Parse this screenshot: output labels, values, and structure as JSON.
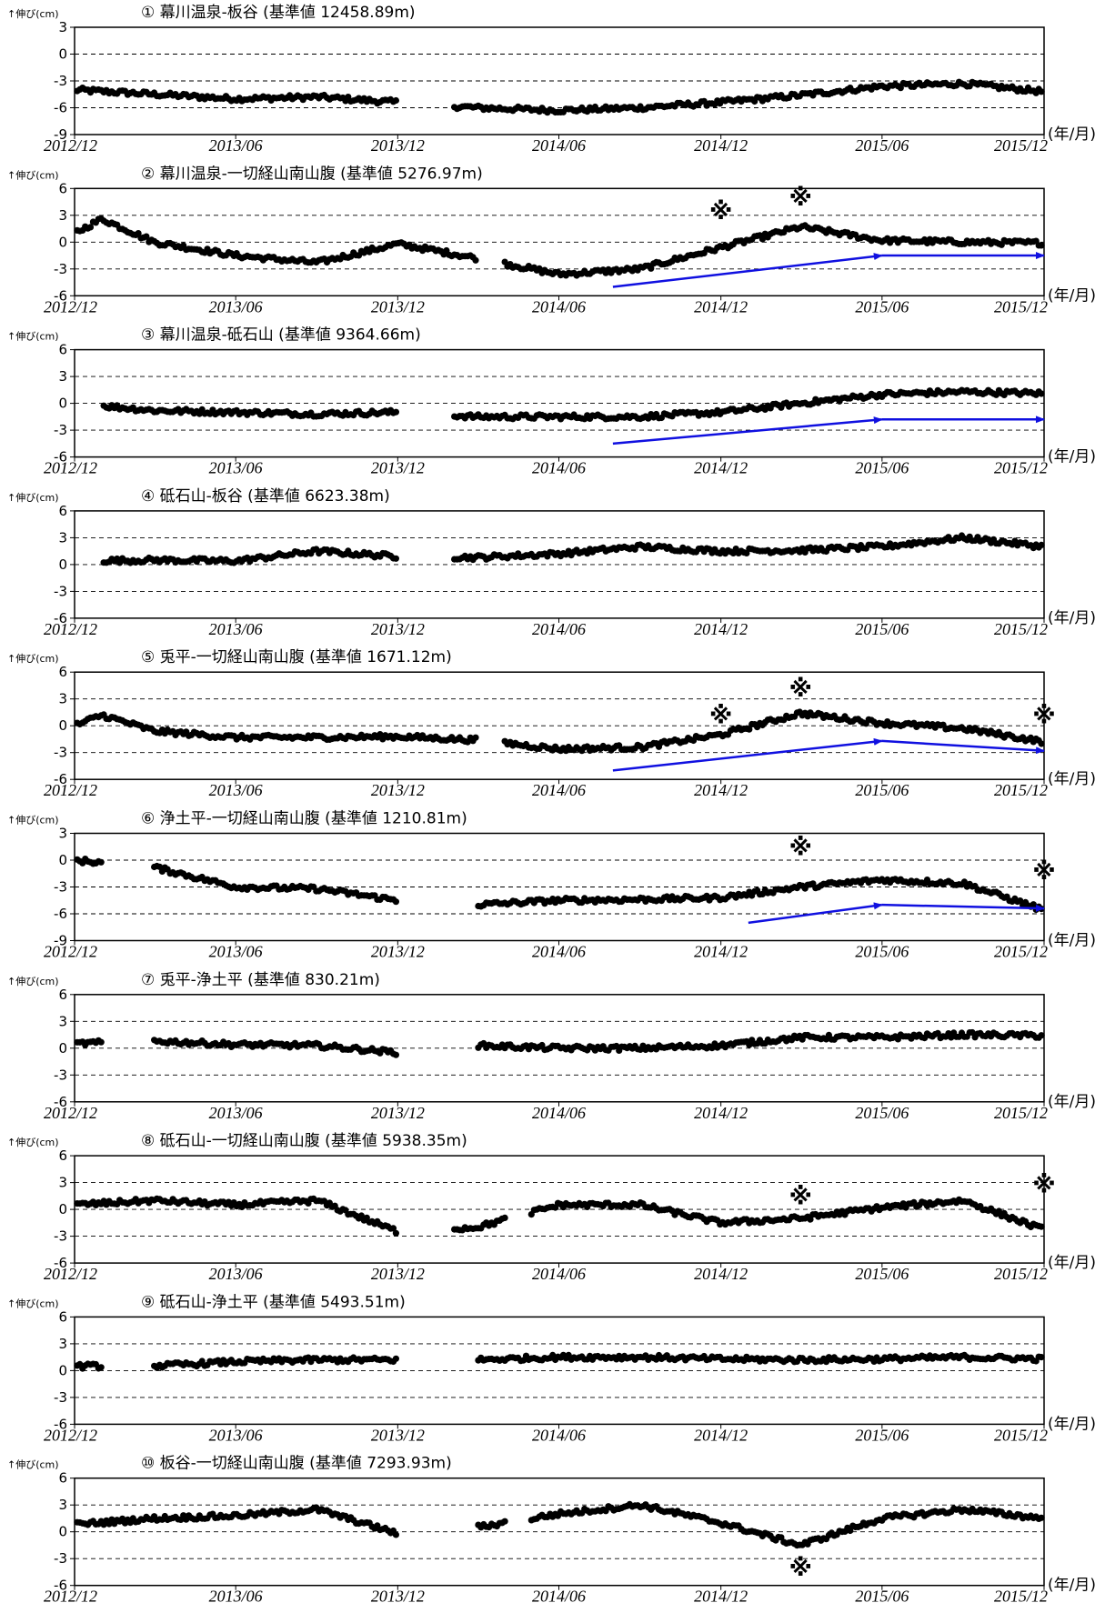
{
  "x_unit_label": "(年/月)",
  "y_unit_label": "↑伸び(cm)",
  "x_ticks": [
    "2012/12",
    "2013/06",
    "2013/12",
    "2014/06",
    "2014/12",
    "2015/06",
    "2015/12"
  ],
  "annotation_symbol": "※",
  "colors": {
    "points": "#000000",
    "arrows": "#1010e0",
    "grid": "#000000"
  },
  "chart_data": [
    {
      "type": "scatter",
      "title": "① 幕川温泉-板谷 (基準値 12458.89m)",
      "ylim": [
        -9,
        3
      ],
      "yticks": [
        "3",
        "0",
        "-3",
        "-6",
        "-9"
      ],
      "x": [
        "2012/12",
        "2013/06",
        "2013/09",
        "2013/12",
        "2014/03",
        "2014/06",
        "2014/09",
        "2014/12",
        "2015/03",
        "2015/06",
        "2015/09",
        "2015/12"
      ],
      "y": [
        -4.0,
        -5.0,
        -4.8,
        -5.4,
        -6.0,
        -6.3,
        -6.0,
        -5.4,
        -4.6,
        -3.6,
        -3.3,
        -4.2
      ],
      "gaps": [
        [
          "2013/12",
          "2014/02"
        ]
      ],
      "arrows": [],
      "marks": []
    },
    {
      "type": "scatter",
      "title": "② 幕川温泉-一切経山南山腹 (基準値 5276.97m)",
      "ylim": [
        -6,
        6
      ],
      "yticks": [
        "6",
        "3",
        "0",
        "-3",
        "-6"
      ],
      "x": [
        "2012/12",
        "2013/01",
        "2013/03",
        "2013/06",
        "2013/09",
        "2013/12",
        "2014/03",
        "2014/06",
        "2014/09",
        "2014/12",
        "2015/03",
        "2015/06",
        "2015/09",
        "2015/12"
      ],
      "y": [
        1.0,
        2.6,
        0.0,
        -1.5,
        -2.3,
        -0.2,
        -1.8,
        -3.6,
        -3.0,
        -0.6,
        1.7,
        0.2,
        0.0,
        -0.1
      ],
      "gaps": [
        [
          "2014/03",
          "2014/04"
        ]
      ],
      "arrows": [
        [
          "2014/08",
          "-5.0",
          "2015/06",
          "-1.5"
        ],
        [
          "2015/06",
          "-1.5",
          "2015/12",
          "-1.5"
        ]
      ],
      "marks": [
        [
          "2014/12",
          "3.5"
        ],
        [
          "2015/03",
          "5.0"
        ]
      ]
    },
    {
      "type": "scatter",
      "title": "③ 幕川温泉-砥石山 (基準値 9364.66m)",
      "ylim": [
        -6,
        6
      ],
      "yticks": [
        "6",
        "3",
        "0",
        "-3",
        "-6"
      ],
      "x": [
        "2012/12",
        "2013/03",
        "2013/06",
        "2013/09",
        "2013/12",
        "2014/03",
        "2014/06",
        "2014/09",
        "2014/12",
        "2015/03",
        "2015/06",
        "2015/09",
        "2015/12"
      ],
      "y": [
        0.0,
        -0.8,
        -1.0,
        -1.2,
        -1.0,
        -1.5,
        -1.5,
        -1.5,
        -1.0,
        0.0,
        1.0,
        1.3,
        1.1
      ],
      "gaps": [
        [
          "2012/12",
          "2013/01"
        ],
        [
          "2013/12",
          "2014/02"
        ]
      ],
      "arrows": [
        [
          "2014/08",
          "-4.5",
          "2015/06",
          "-1.8"
        ],
        [
          "2015/06",
          "-1.8",
          "2015/12",
          "-1.8"
        ]
      ],
      "marks": []
    },
    {
      "type": "scatter",
      "title": "④ 砥石山-板谷 (基準値 6623.38m)",
      "ylim": [
        -6,
        6
      ],
      "yticks": [
        "6",
        "3",
        "0",
        "-3",
        "-6"
      ],
      "x": [
        "2012/12",
        "2013/03",
        "2013/06",
        "2013/09",
        "2013/12",
        "2014/03",
        "2014/06",
        "2014/09",
        "2014/12",
        "2015/03",
        "2015/06",
        "2015/09",
        "2015/12"
      ],
      "y": [
        0.4,
        0.5,
        0.4,
        1.5,
        0.9,
        0.8,
        1.2,
        2.0,
        1.5,
        1.6,
        2.0,
        3.0,
        2.0
      ],
      "gaps": [
        [
          "2012/12",
          "2013/01"
        ],
        [
          "2013/12",
          "2014/02"
        ]
      ],
      "arrows": [],
      "marks": []
    },
    {
      "type": "scatter",
      "title": "⑤ 兎平-一切経山南山腹 (基準値 1671.12m)",
      "ylim": [
        -6,
        6
      ],
      "yticks": [
        "6",
        "3",
        "0",
        "-3",
        "-6"
      ],
      "x": [
        "2012/12",
        "2013/01",
        "2013/03",
        "2013/06",
        "2013/09",
        "2013/12",
        "2014/03",
        "2014/06",
        "2014/09",
        "2014/12",
        "2015/03",
        "2015/06",
        "2015/09",
        "2015/12"
      ],
      "y": [
        0.0,
        1.2,
        -0.6,
        -1.3,
        -1.3,
        -1.2,
        -1.6,
        -2.6,
        -2.4,
        -1.0,
        1.4,
        0.3,
        -0.3,
        -1.8
      ],
      "gaps": [
        [
          "2014/03",
          "2014/04"
        ]
      ],
      "arrows": [
        [
          "2014/08",
          "-5.0",
          "2015/06",
          "-1.7"
        ],
        [
          "2015/06",
          "-1.7",
          "2015/12",
          "-2.8"
        ]
      ],
      "marks": [
        [
          "2014/12",
          "1.2"
        ],
        [
          "2015/03",
          "4.2"
        ],
        [
          "2015/12",
          "1.2"
        ]
      ]
    },
    {
      "type": "scatter",
      "title": "⑥ 浄土平-一切経山南山腹 (基準値 1210.81m)",
      "ylim": [
        -9,
        3
      ],
      "yticks": [
        "3",
        "0",
        "-3",
        "-6",
        "-9"
      ],
      "x": [
        "2012/12",
        "2013/03",
        "2013/06",
        "2013/09",
        "2013/12",
        "2014/03",
        "2014/06",
        "2014/09",
        "2014/12",
        "2015/03",
        "2015/06",
        "2015/09",
        "2015/12"
      ],
      "y": [
        0.0,
        -0.8,
        -3.0,
        -3.2,
        -4.5,
        -5.0,
        -4.5,
        -4.4,
        -4.2,
        -3.0,
        -2.2,
        -2.6,
        -5.6
      ],
      "gaps": [
        [
          "2013/01",
          "2013/03"
        ],
        [
          "2013/12",
          "2014/03"
        ]
      ],
      "arrows": [
        [
          "2015/01",
          "-7.0",
          "2015/06",
          "-5.0"
        ],
        [
          "2015/06",
          "-5.0",
          "2015/12",
          "-5.4"
        ]
      ],
      "marks": [
        [
          "2015/03",
          "1.5"
        ],
        [
          "2015/12",
          "-1.2"
        ]
      ]
    },
    {
      "type": "scatter",
      "title": "⑦ 兎平-浄土平 (基準値 830.21m)",
      "ylim": [
        -6,
        6
      ],
      "yticks": [
        "6",
        "3",
        "0",
        "-3",
        "-6"
      ],
      "x": [
        "2012/12",
        "2013/03",
        "2013/06",
        "2013/09",
        "2013/12",
        "2014/03",
        "2014/06",
        "2014/09",
        "2014/12",
        "2015/03",
        "2015/06",
        "2015/09",
        "2015/12"
      ],
      "y": [
        0.5,
        0.8,
        0.4,
        0.3,
        -0.5,
        0.3,
        0.0,
        0.0,
        0.3,
        1.2,
        1.2,
        1.5,
        1.4
      ],
      "gaps": [
        [
          "2013/01",
          "2013/03"
        ],
        [
          "2013/12",
          "2014/03"
        ]
      ],
      "arrows": [],
      "marks": []
    },
    {
      "type": "scatter",
      "title": "⑧ 砥石山-一切経山南山腹 (基準値 5938.35m)",
      "ylim": [
        -6,
        6
      ],
      "yticks": [
        "6",
        "3",
        "0",
        "-3",
        "-6"
      ],
      "x": [
        "2012/12",
        "2013/03",
        "2013/06",
        "2013/09",
        "2013/12",
        "2014/03",
        "2014/06",
        "2014/09",
        "2014/12",
        "2015/03",
        "2015/06",
        "2015/09",
        "2015/12"
      ],
      "y": [
        0.5,
        1.0,
        0.5,
        1.0,
        -2.5,
        -2.0,
        0.5,
        0.5,
        -1.5,
        -1.0,
        0.2,
        1.0,
        -2.3
      ],
      "gaps": [
        [
          "2013/12",
          "2014/02"
        ],
        [
          "2014/04",
          "2014/05"
        ]
      ],
      "arrows": [],
      "marks": [
        [
          "2015/03",
          "1.5"
        ],
        [
          "2015/12",
          "2.8"
        ]
      ]
    },
    {
      "type": "scatter",
      "title": "⑨ 砥石山-浄土平 (基準値 5493.51m)",
      "ylim": [
        -6,
        6
      ],
      "yticks": [
        "6",
        "3",
        "0",
        "-3",
        "-6"
      ],
      "x": [
        "2012/12",
        "2013/03",
        "2013/06",
        "2013/09",
        "2013/12",
        "2014/03",
        "2014/06",
        "2014/09",
        "2014/12",
        "2015/03",
        "2015/06",
        "2015/09",
        "2015/12"
      ],
      "y": [
        0.5,
        0.5,
        1.0,
        1.2,
        1.2,
        1.2,
        1.5,
        1.5,
        1.3,
        1.2,
        1.3,
        1.5,
        1.3
      ],
      "gaps": [
        [
          "2013/01",
          "2013/03"
        ],
        [
          "2013/12",
          "2014/03"
        ]
      ],
      "arrows": [],
      "marks": []
    },
    {
      "type": "scatter",
      "title": "⑩ 板谷-一切経山南山腹 (基準値 7293.93m)",
      "ylim": [
        -6,
        6
      ],
      "yticks": [
        "6",
        "3",
        "0",
        "-3",
        "-6"
      ],
      "x": [
        "2012/12",
        "2013/03",
        "2013/06",
        "2013/09",
        "2013/12",
        "2014/03",
        "2014/06",
        "2014/09",
        "2014/12",
        "2015/03",
        "2015/06",
        "2015/09",
        "2015/12"
      ],
      "y": [
        0.8,
        1.5,
        1.8,
        2.5,
        -0.2,
        0.5,
        2.0,
        3.0,
        1.0,
        -1.5,
        1.5,
        2.5,
        1.5
      ],
      "gaps": [
        [
          "2013/12",
          "2014/03"
        ],
        [
          "2014/04",
          "2014/05"
        ]
      ],
      "arrows": [],
      "marks": [
        [
          "2015/03",
          "-4.0"
        ]
      ]
    }
  ]
}
